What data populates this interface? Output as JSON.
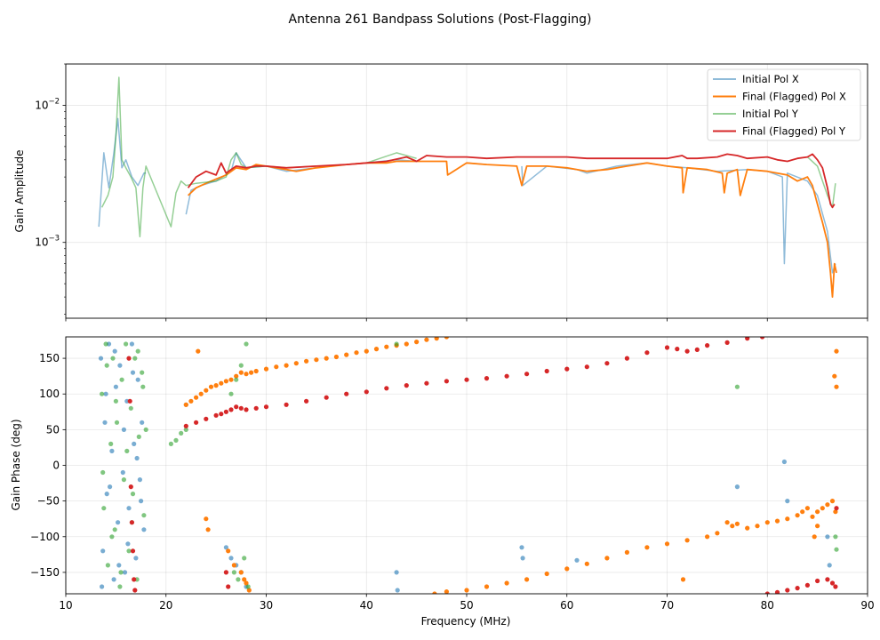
{
  "figure": {
    "title": "Antenna 261 Bandpass Solutions (Post-Flagging)"
  },
  "colors": {
    "pol_x": "#1f77b4",
    "pol_x_final": "#ff7f0e",
    "pol_y": "#2ca02c",
    "pol_y_final": "#d62728"
  },
  "chart_data": [
    {
      "type": "line",
      "title": "",
      "xlabel": "",
      "ylabel": "Gain Amplitude",
      "yscale": "log",
      "xlim": [
        10,
        90
      ],
      "ylim": [
        0.00028,
        0.02
      ],
      "xticks": [
        10,
        20,
        30,
        40,
        50,
        60,
        70,
        80,
        90
      ],
      "yticks": [
        {
          "value": 0.001,
          "base": "10",
          "exp": "−3"
        },
        {
          "value": 0.01,
          "base": "10",
          "exp": "−2"
        }
      ],
      "grid": true,
      "legend": "top-right",
      "series": [
        {
          "name": "Initial Pol X",
          "color": "#1f77b4",
          "alpha": 0.5,
          "x": [
            13.3,
            13.8,
            14.3,
            14.8,
            15.2,
            15.6,
            16.0,
            16.6,
            17.2,
            17.8,
            18.0,
            22.0,
            22.5,
            23.5,
            25.0,
            26.5,
            27.0,
            28.0,
            30.0,
            32.0,
            35.0,
            40.0,
            43.0,
            45.0,
            50.0,
            52.0,
            55.5,
            55.6,
            58.0,
            61.0,
            62.0,
            65.0,
            68.0,
            70.0,
            72.0,
            75.0,
            78.0,
            80.0,
            81.5,
            81.7,
            82.0,
            84.0,
            85.0,
            86.0,
            86.5,
            86.8
          ],
          "y": [
            0.0013,
            0.0045,
            0.0025,
            0.0045,
            0.008,
            0.0035,
            0.004,
            0.003,
            0.0026,
            0.0032,
            0.0032,
            0.0016,
            0.0024,
            0.0026,
            0.0028,
            0.0033,
            0.0045,
            0.0035,
            0.0036,
            0.0033,
            0.0035,
            0.0038,
            0.004,
            0.0039,
            0.0038,
            0.0037,
            0.0036,
            0.0026,
            0.0036,
            0.0034,
            0.0032,
            0.0036,
            0.0038,
            0.0036,
            0.0035,
            0.0033,
            0.0034,
            0.0033,
            0.003,
            0.0007,
            0.0032,
            0.0028,
            0.0022,
            0.0012,
            0.0006,
            0.0007
          ]
        },
        {
          "name": "Final (Flagged) Pol X",
          "color": "#ff7f0e",
          "alpha": 1,
          "x": [
            22.2,
            23.0,
            24.0,
            25.0,
            26.0,
            27.0,
            28.0,
            29.0,
            30.0,
            31.0,
            32.0,
            33.0,
            35.0,
            38.0,
            40.0,
            42.0,
            43.0,
            45.0,
            47.0,
            48.0,
            48.1,
            50.0,
            52.0,
            55.0,
            55.5,
            56.0,
            58.0,
            60.0,
            62.0,
            64.0,
            66.0,
            68.0,
            70.0,
            71.5,
            71.6,
            72.0,
            74.0,
            75.5,
            75.7,
            76.0,
            77.0,
            77.3,
            78.0,
            80.0,
            82.0,
            83.0,
            84.0,
            84.5,
            85.0,
            85.5,
            86.0,
            86.3,
            86.5,
            86.7,
            86.9
          ],
          "y": [
            0.0022,
            0.0025,
            0.0027,
            0.0029,
            0.0031,
            0.0035,
            0.0034,
            0.0037,
            0.0036,
            0.0035,
            0.0034,
            0.0033,
            0.0035,
            0.0037,
            0.0038,
            0.0038,
            0.0039,
            0.0039,
            0.0039,
            0.0039,
            0.0031,
            0.0038,
            0.0037,
            0.0036,
            0.0026,
            0.0036,
            0.0036,
            0.0035,
            0.0033,
            0.0034,
            0.0036,
            0.0038,
            0.0036,
            0.0035,
            0.0023,
            0.0035,
            0.0034,
            0.0032,
            0.0023,
            0.0032,
            0.0034,
            0.0022,
            0.0034,
            0.0033,
            0.0031,
            0.0028,
            0.003,
            0.0026,
            0.0019,
            0.0014,
            0.001,
            0.0006,
            0.0004,
            0.0007,
            0.0006
          ]
        },
        {
          "name": "Initial Pol Y",
          "color": "#2ca02c",
          "alpha": 0.5,
          "x": [
            13.6,
            14.2,
            14.7,
            15.0,
            15.3,
            15.6,
            16.0,
            16.5,
            17.0,
            17.4,
            17.7,
            18.0,
            20.5,
            21.0,
            21.5,
            22.0,
            23.0,
            25.0,
            26.0,
            26.5,
            27.0,
            27.5,
            28.0,
            30.0,
            32.0,
            35.0,
            40.0,
            43.0,
            45.0,
            50.0,
            55.0,
            60.0,
            65.0,
            70.0,
            75.0,
            80.0,
            84.0,
            85.0,
            86.0,
            86.5,
            86.8
          ],
          "y": [
            0.0018,
            0.0022,
            0.003,
            0.006,
            0.016,
            0.004,
            0.0035,
            0.003,
            0.0025,
            0.0011,
            0.0025,
            0.0036,
            0.0013,
            0.0023,
            0.0028,
            0.0026,
            0.0027,
            0.0028,
            0.003,
            0.004,
            0.0045,
            0.0037,
            0.0035,
            0.0036,
            0.0035,
            0.0036,
            0.0038,
            0.0045,
            0.0041,
            0.004,
            0.004,
            0.0039,
            0.004,
            0.0041,
            0.004,
            0.0041,
            0.0042,
            0.0036,
            0.0022,
            0.0018,
            0.0027
          ]
        },
        {
          "name": "Final (Flagged) Pol Y",
          "color": "#d62728",
          "alpha": 1,
          "x": [
            22.2,
            23.0,
            24.0,
            25.0,
            25.5,
            26.0,
            26.5,
            27.0,
            28.0,
            29.0,
            30.0,
            32.0,
            35.0,
            38.0,
            40.0,
            42.0,
            44.0,
            45.0,
            46.0,
            48.0,
            50.0,
            52.0,
            55.0,
            58.0,
            60.0,
            62.0,
            65.0,
            68.0,
            70.0,
            71.5,
            72.0,
            73.0,
            75.0,
            76.0,
            77.0,
            78.0,
            80.0,
            81.0,
            82.0,
            83.0,
            84.0,
            84.5,
            85.0,
            85.5,
            86.0,
            86.3,
            86.5,
            86.7
          ],
          "y": [
            0.0025,
            0.003,
            0.0033,
            0.0031,
            0.0038,
            0.0032,
            0.0034,
            0.0036,
            0.0035,
            0.0036,
            0.0036,
            0.0035,
            0.0036,
            0.0037,
            0.0038,
            0.0039,
            0.0042,
            0.0039,
            0.0043,
            0.0042,
            0.0042,
            0.0041,
            0.0042,
            0.0042,
            0.0042,
            0.0041,
            0.0041,
            0.0041,
            0.0041,
            0.0043,
            0.0041,
            0.0041,
            0.0042,
            0.0044,
            0.0043,
            0.0041,
            0.0042,
            0.004,
            0.0039,
            0.0041,
            0.0042,
            0.0044,
            0.004,
            0.0035,
            0.0025,
            0.0019,
            0.0018,
            0.0019
          ]
        }
      ]
    },
    {
      "type": "scatter",
      "title": "",
      "xlabel": "Frequency (MHz)",
      "ylabel": "Gain Phase (deg)",
      "xlim": [
        10,
        90
      ],
      "ylim": [
        -180,
        180
      ],
      "xticks": [
        10,
        20,
        30,
        40,
        50,
        60,
        70,
        80,
        90
      ],
      "yticks": [
        -150,
        -100,
        -50,
        0,
        50,
        100,
        150
      ],
      "grid": true,
      "series": [
        {
          "name": "Initial Pol X",
          "color": "#1f77b4",
          "alpha": 0.6,
          "x": [
            13.5,
            13.7,
            13.9,
            14.1,
            14.3,
            14.6,
            14.8,
            15.0,
            15.2,
            15.4,
            15.7,
            15.9,
            16.1,
            16.3,
            16.6,
            16.8,
            17.0,
            17.2,
            17.4,
            17.6,
            17.8,
            13.6,
            14.0,
            14.4,
            14.9,
            15.3,
            15.8,
            16.2,
            16.7,
            17.1,
            17.5,
            22.0,
            26.0,
            26.5,
            27.0,
            27.5,
            28.0,
            43.0,
            43.1,
            55.5,
            55.6,
            61.0,
            77.0,
            81.7,
            82.0,
            86.0,
            86.2
          ],
          "y": [
            150,
            -120,
            60,
            -40,
            170,
            20,
            -160,
            110,
            -80,
            140,
            -10,
            -150,
            90,
            -60,
            170,
            30,
            -130,
            120,
            -20,
            60,
            -90,
            -170,
            100,
            -30,
            160,
            -140,
            50,
            -110,
            130,
            10,
            -50,
            85,
            -115,
            -130,
            -140,
            -150,
            -170,
            -150,
            -175,
            -115,
            -130,
            -133,
            -30,
            5,
            -50,
            -100,
            -140
          ]
        },
        {
          "name": "Final (Flagged) Pol X",
          "color": "#ff7f0e",
          "alpha": 1,
          "x": [
            22.0,
            22.5,
            23.0,
            23.5,
            24.0,
            24.5,
            25.0,
            25.5,
            26.0,
            26.5,
            27.0,
            27.5,
            28.0,
            28.5,
            29.0,
            30.0,
            31.0,
            32.0,
            33.0,
            34.0,
            35.0,
            36.0,
            37.0,
            38.0,
            39.0,
            40.0,
            41.0,
            42.0,
            43.0,
            44.0,
            45.0,
            46.0,
            47.0,
            48.0,
            23.2,
            24.0,
            24.2,
            26.2,
            26.8,
            27.5,
            28.3,
            27.8,
            28.0,
            46.8,
            48.0,
            50.0,
            52.0,
            54.0,
            56.0,
            58.0,
            60.0,
            62.0,
            64.0,
            66.0,
            68.0,
            70.0,
            72.0,
            74.0,
            75.0,
            76.0,
            76.5,
            77.0,
            78.0,
            79.0,
            80.0,
            81.0,
            82.0,
            83.0,
            83.5,
            84.0,
            84.5,
            85.0,
            85.5,
            86.0,
            86.5,
            86.8,
            86.9,
            86.7,
            86.9,
            71.6,
            85.0,
            84.7
          ],
          "y": [
            85,
            90,
            95,
            100,
            105,
            110,
            112,
            115,
            118,
            120,
            125,
            130,
            128,
            130,
            132,
            135,
            138,
            140,
            143,
            146,
            148,
            150,
            152,
            155,
            158,
            160,
            163,
            166,
            168,
            170,
            173,
            176,
            178,
            180,
            160,
            -75,
            -90,
            -120,
            -140,
            -150,
            -175,
            -160,
            -165,
            -180,
            -177,
            -175,
            -170,
            -165,
            -160,
            -152,
            -145,
            -138,
            -130,
            -122,
            -115,
            -110,
            -105,
            -100,
            -95,
            -80,
            -85,
            -82,
            -88,
            -85,
            -80,
            -78,
            -75,
            -70,
            -65,
            -60,
            -72,
            -65,
            -60,
            -55,
            -50,
            -65,
            160,
            125,
            110,
            -160,
            -85,
            -100
          ]
        },
        {
          "name": "Initial Pol Y",
          "color": "#2ca02c",
          "alpha": 0.6,
          "x": [
            13.6,
            13.8,
            14.0,
            14.2,
            14.5,
            14.7,
            14.9,
            15.1,
            15.4,
            15.6,
            15.8,
            16.0,
            16.3,
            16.5,
            16.7,
            16.9,
            17.1,
            17.3,
            17.6,
            17.8,
            18.0,
            13.7,
            14.1,
            14.6,
            15.0,
            15.5,
            16.1,
            16.6,
            17.2,
            17.7,
            20.5,
            21.0,
            21.5,
            22.0,
            26.5,
            27.0,
            27.5,
            28.0,
            26.8,
            27.2,
            27.8,
            28.2,
            43.0,
            77.0,
            86.8,
            86.9
          ],
          "y": [
            100,
            -60,
            170,
            -140,
            30,
            150,
            -90,
            60,
            -170,
            120,
            -20,
            170,
            -120,
            80,
            -40,
            150,
            -160,
            40,
            130,
            -70,
            50,
            -10,
            140,
            -100,
            90,
            -150,
            20,
            -80,
            160,
            110,
            30,
            35,
            45,
            50,
            100,
            120,
            140,
            170,
            -150,
            -160,
            -130,
            -170,
            170,
            110,
            -100,
            -118
          ]
        },
        {
          "name": "Final (Flagged) Pol Y",
          "color": "#d62728",
          "alpha": 1,
          "x": [
            22.0,
            23.0,
            24.0,
            25.0,
            25.5,
            26.0,
            26.5,
            27.0,
            27.5,
            28.0,
            29.0,
            30.0,
            32.0,
            34.0,
            36.0,
            38.0,
            40.0,
            42.0,
            44.0,
            46.0,
            48.0,
            50.0,
            52.0,
            54.0,
            56.0,
            58.0,
            60.0,
            62.0,
            64.0,
            66.0,
            68.0,
            70.0,
            71.0,
            72.0,
            73.0,
            74.0,
            76.0,
            78.0,
            79.5,
            80.0,
            81.0,
            82.0,
            83.0,
            84.0,
            85.0,
            86.0,
            86.5,
            86.8,
            86.9,
            16.3,
            16.4,
            16.5,
            16.6,
            16.7,
            16.8,
            16.9,
            26.0,
            26.2
          ],
          "y": [
            55,
            60,
            65,
            70,
            72,
            75,
            78,
            82,
            80,
            78,
            80,
            82,
            85,
            90,
            95,
            100,
            103,
            108,
            112,
            115,
            118,
            120,
            122,
            125,
            128,
            132,
            135,
            138,
            143,
            150,
            158,
            165,
            163,
            160,
            162,
            168,
            172,
            178,
            180,
            -180,
            -178,
            -175,
            -172,
            -168,
            -162,
            -160,
            -165,
            -170,
            -60,
            150,
            90,
            -30,
            -80,
            -120,
            -160,
            -175,
            -150,
            -170
          ]
        }
      ]
    }
  ]
}
